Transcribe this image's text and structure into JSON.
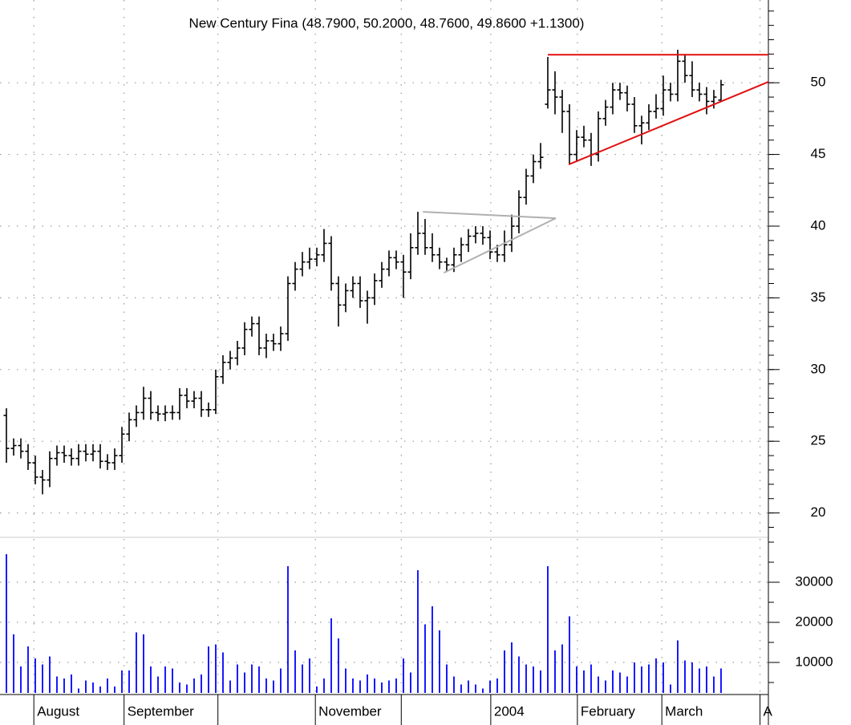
{
  "chart_data": {
    "type": "ohlc",
    "title": "New Century Fina (48.7900, 50.2000, 48.7600, 49.8600 +1.1300)",
    "color": "#000000",
    "volume_color": "#0000ff",
    "grid": true,
    "xlim": [
      0,
      105.56
    ],
    "xticks": [
      {
        "value": 3.8,
        "label": "August"
      },
      {
        "value": 16.3,
        "label": "September"
      },
      {
        "value": 42.8,
        "label": "November"
      },
      {
        "value": 67.1,
        "label": "2004"
      },
      {
        "value": 79.1,
        "label": "February"
      },
      {
        "value": 90.8,
        "label": "March"
      },
      {
        "value": 104.4,
        "label": "A"
      }
    ],
    "minor_xticks": [
      29.3,
      54.7
    ],
    "ylim": [
      18.3,
      55.77
    ],
    "yticks": [
      20,
      25,
      30,
      35,
      40,
      45,
      50
    ],
    "minor_ytick_step": 1,
    "y2lim": [
      2400,
      41200
    ],
    "y2ticks": [
      10000,
      20000,
      30000
    ],
    "minor_y2tick_step": 5000,
    "open": [
      26.8,
      24.5,
      24.7,
      24.3,
      23.5,
      22.5,
      22.3,
      23.8,
      24.2,
      24.0,
      23.8,
      24.3,
      24.1,
      24.3,
      23.6,
      23.5,
      24.0,
      25.5,
      26.5,
      27.0,
      28.0,
      27.0,
      26.9,
      27.0,
      27.0,
      28.2,
      27.8,
      28.0,
      27.2,
      27.2,
      29.5,
      30.5,
      30.8,
      31.5,
      32.8,
      33.2,
      31.5,
      32.0,
      31.8,
      32.5,
      36.0,
      37.0,
      37.5,
      37.7,
      38.0,
      38.8,
      36.0,
      34.5,
      35.5,
      36.0,
      34.8,
      35.0,
      36.2,
      37.0,
      37.8,
      37.5,
      36.8,
      38.5,
      39.5,
      38.5,
      38.0,
      37.5,
      37.3,
      38.0,
      38.7,
      39.3,
      39.5,
      39.2,
      38.2,
      38.0,
      38.7,
      40.0,
      42.0,
      43.5,
      44.5,
      48.5,
      49.5,
      49.0,
      48.0,
      45.0,
      46.2,
      46.0,
      45.0,
      47.5,
      48.3,
      49.5,
      49.3,
      48.5,
      47.0,
      47.2,
      48.0,
      48.2,
      49.5,
      49.2,
      51.5,
      50.5,
      49.5,
      49.2,
      48.7,
      48.79
    ],
    "high": [
      27.3,
      25.2,
      25.2,
      24.8,
      24.0,
      23.0,
      24.3,
      24.7,
      24.7,
      24.5,
      24.8,
      24.8,
      24.8,
      24.8,
      24.1,
      24.5,
      26.0,
      27.0,
      27.5,
      28.8,
      28.5,
      27.5,
      27.5,
      27.5,
      28.7,
      28.7,
      28.5,
      28.5,
      27.7,
      30.0,
      31.0,
      31.3,
      32.0,
      33.3,
      33.7,
      33.7,
      32.5,
      32.5,
      33.0,
      36.5,
      37.5,
      38.2,
      38.5,
      38.5,
      39.8,
      39.3,
      36.5,
      36.0,
      36.5,
      36.5,
      35.5,
      36.7,
      37.5,
      38.3,
      38.3,
      38.0,
      39.5,
      41.0,
      40.5,
      39.5,
      38.5,
      37.8,
      38.5,
      39.2,
      39.8,
      40.0,
      40.0,
      39.7,
      38.7,
      39.7,
      40.8,
      42.5,
      44.0,
      45.0,
      45.8,
      51.8,
      50.8,
      49.5,
      48.5,
      46.7,
      47.0,
      46.5,
      48.0,
      48.8,
      50.0,
      50.0,
      49.8,
      49.0,
      47.7,
      48.5,
      49.2,
      50.5,
      50.0,
      52.3,
      52.0,
      51.5,
      50.0,
      49.7,
      49.5,
      50.2
    ],
    "low": [
      23.5,
      24.0,
      23.8,
      23.0,
      22.0,
      21.3,
      21.8,
      23.3,
      23.5,
      23.3,
      23.3,
      23.6,
      23.6,
      23.1,
      23.0,
      23.0,
      23.5,
      25.0,
      26.0,
      26.5,
      26.5,
      26.4,
      26.4,
      26.5,
      26.5,
      27.3,
      27.3,
      26.7,
      26.7,
      26.9,
      29.0,
      30.0,
      30.3,
      31.0,
      32.3,
      31.0,
      30.8,
      31.3,
      31.3,
      32.0,
      35.5,
      36.5,
      37.0,
      37.2,
      37.5,
      35.5,
      33.0,
      34.0,
      35.0,
      34.3,
      33.2,
      34.5,
      35.7,
      36.5,
      37.0,
      35.0,
      36.3,
      38.0,
      38.0,
      37.5,
      37.0,
      36.8,
      36.8,
      37.5,
      38.2,
      38.8,
      38.7,
      37.7,
      37.5,
      37.5,
      38.2,
      39.5,
      41.5,
      43.0,
      44.0,
      48.2,
      47.8,
      46.5,
      44.3,
      44.5,
      45.5,
      44.2,
      44.5,
      47.0,
      47.8,
      48.8,
      48.0,
      46.5,
      45.7,
      46.7,
      47.5,
      47.7,
      48.7,
      48.7,
      50.0,
      49.0,
      48.7,
      47.8,
      48.2,
      48.76
    ],
    "close": [
      24.5,
      24.7,
      24.3,
      23.5,
      22.5,
      22.3,
      23.8,
      24.2,
      24.0,
      23.8,
      24.3,
      24.1,
      24.3,
      23.6,
      23.5,
      24.0,
      25.5,
      26.5,
      27.0,
      28.0,
      27.0,
      26.9,
      27.0,
      27.0,
      28.2,
      27.8,
      28.0,
      27.2,
      27.2,
      29.5,
      30.5,
      30.8,
      31.5,
      32.8,
      33.2,
      31.5,
      32.0,
      31.8,
      32.5,
      36.0,
      37.0,
      37.5,
      37.7,
      38.0,
      38.8,
      36.0,
      34.5,
      35.5,
      36.0,
      34.8,
      35.0,
      36.2,
      37.0,
      37.8,
      37.5,
      36.8,
      38.5,
      39.5,
      38.5,
      38.0,
      37.5,
      37.3,
      38.0,
      38.7,
      39.3,
      39.5,
      39.2,
      38.2,
      38.0,
      38.7,
      40.0,
      42.0,
      43.5,
      44.5,
      44.8,
      49.5,
      49.0,
      48.0,
      45.0,
      46.2,
      46.0,
      45.0,
      47.5,
      48.3,
      49.5,
      49.3,
      48.5,
      47.0,
      47.2,
      48.0,
      48.2,
      49.5,
      49.2,
      51.5,
      50.5,
      49.5,
      49.2,
      48.7,
      49.0,
      49.86
    ],
    "volume": [
      37000,
      17000,
      9000,
      14000,
      11000,
      9500,
      11500,
      6500,
      6000,
      7000,
      3500,
      5500,
      5000,
      4000,
      6000,
      4000,
      8000,
      8000,
      17500,
      17000,
      9000,
      6500,
      9000,
      8500,
      5000,
      4500,
      6000,
      7000,
      14000,
      14500,
      12500,
      5500,
      9500,
      7500,
      9500,
      9000,
      6000,
      5500,
      8500,
      34000,
      13000,
      9500,
      11000,
      4000,
      6000,
      21000,
      16000,
      8500,
      6000,
      5500,
      7000,
      6000,
      5000,
      5500,
      6000,
      11000,
      7500,
      33000,
      19500,
      24000,
      18000,
      9500,
      6500,
      4500,
      5500,
      4500,
      3500,
      5500,
      6000,
      13000,
      15000,
      11500,
      9500,
      9000,
      8000,
      34000,
      13000,
      14500,
      21500,
      9000,
      8000,
      9500,
      6500,
      5500,
      8000,
      7500,
      6500,
      10000,
      9000,
      9500,
      11000,
      10000,
      4500,
      15500,
      10500,
      10000,
      8500,
      9000,
      6500,
      8500
    ],
    "lines": [
      {
        "color": "#b0b0b0",
        "x": [
          57.7,
          76.1,
          60.6
        ],
        "y": [
          41.0,
          40.55,
          36.75
        ]
      },
      {
        "color": "#e01010",
        "x": [
          75.0,
          105.56
        ],
        "y": [
          51.95,
          51.95
        ]
      },
      {
        "color": "#e01010",
        "x": [
          77.9,
          105.56
        ],
        "y": [
          44.3,
          50.06
        ]
      }
    ]
  }
}
